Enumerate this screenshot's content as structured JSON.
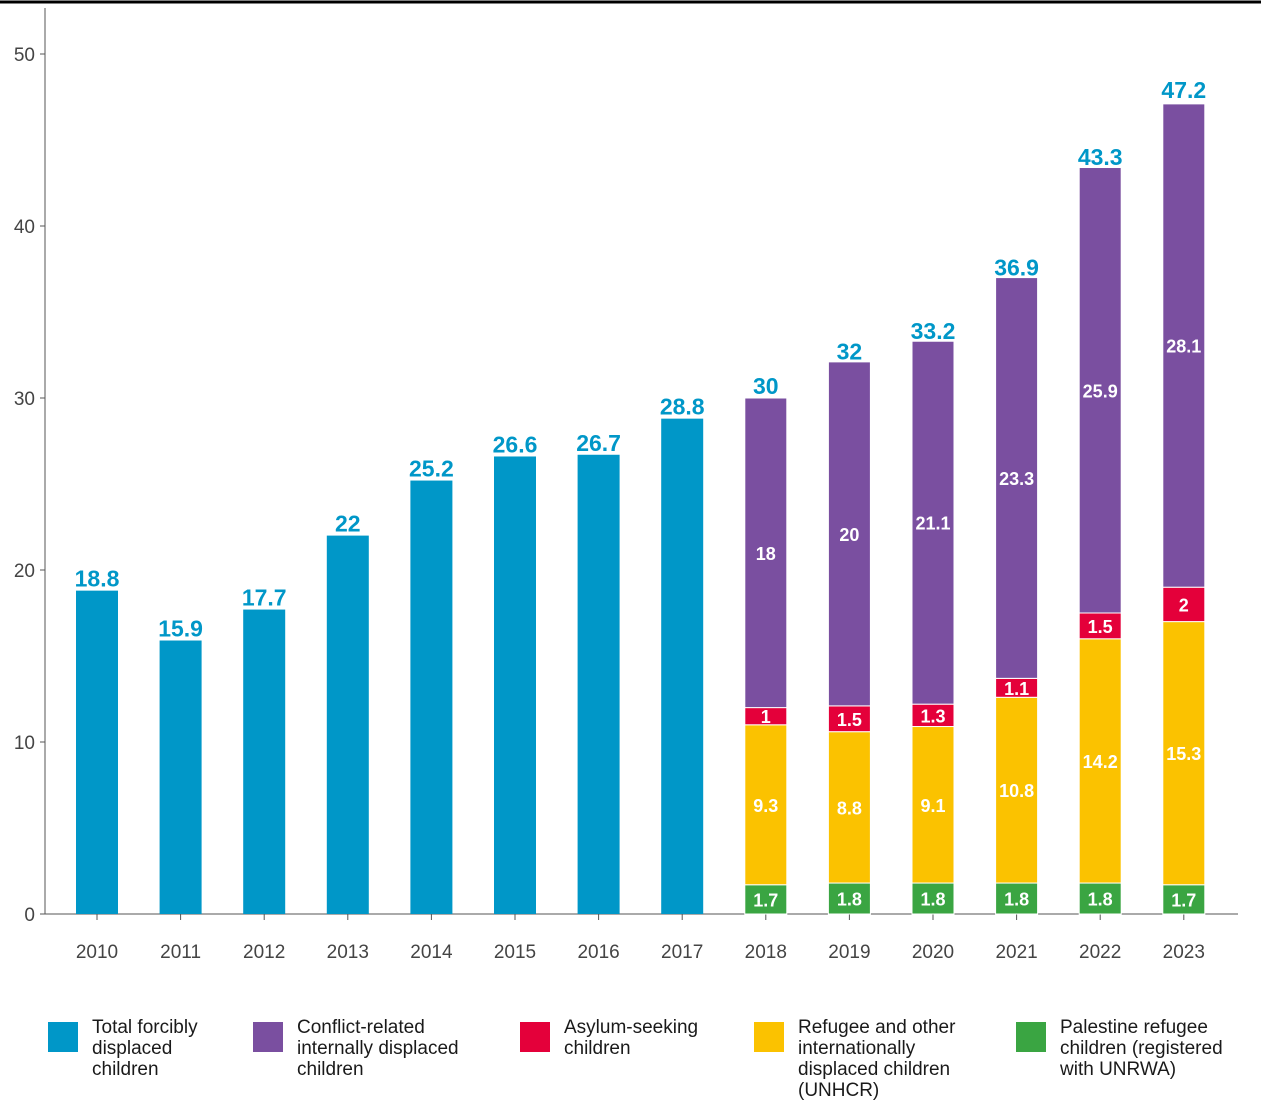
{
  "chart_data": {
    "type": "bar",
    "stacked": true,
    "categories": [
      "2010",
      "2011",
      "2012",
      "2013",
      "2014",
      "2015",
      "2016",
      "2017",
      "2018",
      "2019",
      "2020",
      "2021",
      "2022",
      "2023"
    ],
    "y_ticks": [
      0,
      10,
      20,
      30,
      40,
      50
    ],
    "ylim": [
      0,
      52
    ],
    "grid": false,
    "legend_position": "bottom",
    "totals": [
      18.8,
      15.9,
      17.7,
      22,
      25.2,
      26.6,
      26.7,
      28.8,
      30,
      32,
      33.2,
      36.9,
      43.3,
      47.2
    ],
    "total_label_color": "#0097c8",
    "series": [
      {
        "name": "Total forcibly\ndisplaced\nchildren",
        "color": "#0097c8",
        "values": [
          18.8,
          15.9,
          17.7,
          22,
          25.2,
          26.6,
          26.7,
          28.8,
          null,
          null,
          null,
          null,
          null,
          null
        ]
      },
      {
        "name": "Palestine refugee\nchildren (registered\nwith UNRWA)",
        "color": "#3aa542",
        "values": [
          null,
          null,
          null,
          null,
          null,
          null,
          null,
          null,
          1.7,
          1.8,
          1.8,
          1.8,
          1.8,
          1.7
        ]
      },
      {
        "name": "Refugee and other\ninternationally\ndisplaced children\n(UNHCR)",
        "color": "#fbc200",
        "values": [
          null,
          null,
          null,
          null,
          null,
          null,
          null,
          null,
          9.3,
          8.8,
          9.1,
          10.8,
          14.2,
          15.3
        ]
      },
      {
        "name": "Asylum-seeking\nchildren",
        "color": "#e4003a",
        "values": [
          null,
          null,
          null,
          null,
          null,
          null,
          null,
          null,
          1,
          1.5,
          1.3,
          1.1,
          1.5,
          2
        ]
      },
      {
        "name": "Conflict-related\ninternally displaced\nchildren",
        "color": "#7a4fa0",
        "values": [
          null,
          null,
          null,
          null,
          null,
          null,
          null,
          null,
          18,
          20,
          21.1,
          23.3,
          25.9,
          28.1
        ]
      }
    ]
  },
  "legend": [
    {
      "label": "Total forcibly\ndisplaced\nchildren",
      "color": "#0097c8"
    },
    {
      "label": "Conflict-related\ninternally displaced\nchildren",
      "color": "#7a4fa0"
    },
    {
      "label": "Asylum-seeking\nchildren",
      "color": "#e4003a"
    },
    {
      "label": "Refugee and other\ninternationally\ndisplaced children\n(UNHCR)",
      "color": "#fbc200"
    },
    {
      "label": "Palestine refugee\nchildren (registered\nwith UNRWA)",
      "color": "#3aa542"
    }
  ]
}
